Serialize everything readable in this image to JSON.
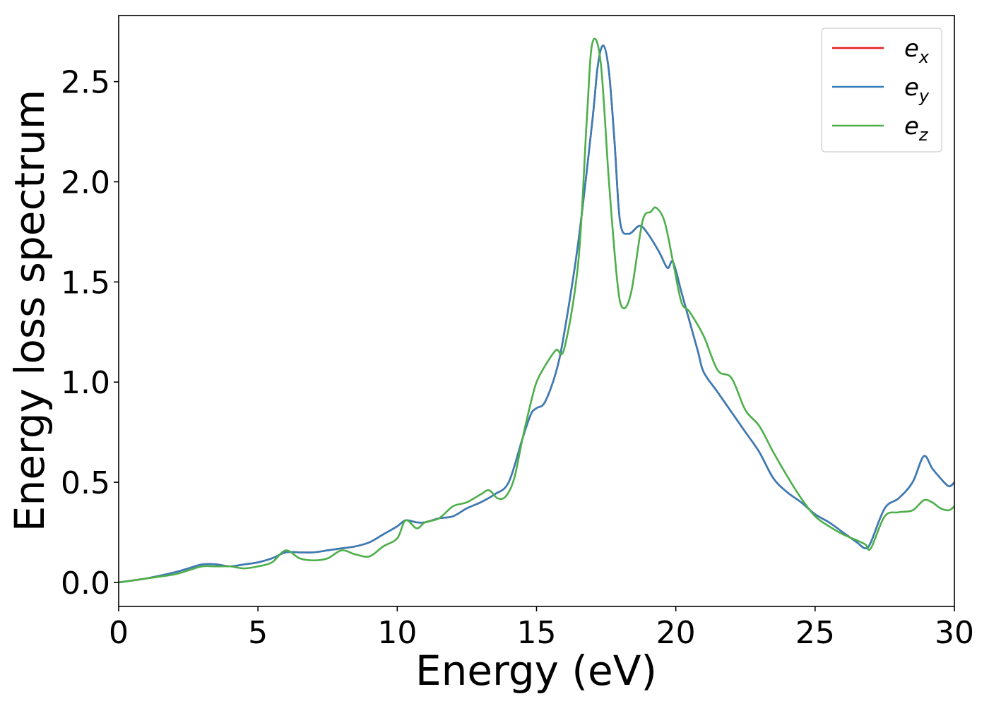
{
  "chart_data": {
    "type": "line",
    "title": "",
    "xlabel": "Energy (eV)",
    "ylabel": "Energy loss spectrum",
    "xlim": [
      0,
      30
    ],
    "ylim": [
      -0.12,
      2.83
    ],
    "xticks": [
      0,
      5,
      10,
      15,
      20,
      25,
      30
    ],
    "yticks": [
      0.0,
      0.5,
      1.0,
      1.5,
      2.0,
      2.5
    ],
    "xtick_labels": [
      "0",
      "5",
      "10",
      "15",
      "20",
      "25",
      "30"
    ],
    "ytick_labels": [
      "0.0",
      "0.5",
      "1.0",
      "1.5",
      "2.0",
      "2.5"
    ],
    "grid": false,
    "legend_position": "top-right",
    "series": [
      {
        "name": "e_x",
        "legend_base": "e",
        "legend_sub": "x",
        "color": "#e41a1c",
        "x": [
          0,
          1,
          2,
          2.5,
          3,
          3.5,
          4,
          4.5,
          5,
          5.5,
          6,
          6.5,
          7,
          7.5,
          8,
          8.5,
          9,
          9.5,
          10,
          10.3,
          10.7,
          11,
          11.5,
          12,
          12.5,
          13,
          13.5,
          14,
          14.5,
          14.8,
          15,
          15.3,
          15.7,
          16,
          16.5,
          17,
          17.2,
          17.4,
          17.6,
          17.8,
          18,
          18.3,
          18.7,
          19,
          19.4,
          19.7,
          19.9,
          20.2,
          20.5,
          20.8,
          21,
          21.5,
          22,
          22.5,
          23,
          23.5,
          24,
          24.5,
          25,
          25.5,
          26,
          26.5,
          26.8,
          27,
          27.5,
          28,
          28.5,
          28.9,
          29.2,
          29.5,
          29.8,
          30
        ],
        "y": [
          0.0,
          0.02,
          0.05,
          0.07,
          0.09,
          0.09,
          0.08,
          0.09,
          0.1,
          0.12,
          0.15,
          0.15,
          0.15,
          0.16,
          0.17,
          0.18,
          0.2,
          0.24,
          0.28,
          0.31,
          0.3,
          0.3,
          0.32,
          0.33,
          0.37,
          0.4,
          0.44,
          0.5,
          0.72,
          0.84,
          0.87,
          0.9,
          1.05,
          1.25,
          1.7,
          2.3,
          2.58,
          2.68,
          2.55,
          2.2,
          1.8,
          1.74,
          1.78,
          1.74,
          1.65,
          1.57,
          1.6,
          1.45,
          1.3,
          1.15,
          1.05,
          0.95,
          0.85,
          0.75,
          0.65,
          0.52,
          0.45,
          0.4,
          0.34,
          0.3,
          0.25,
          0.2,
          0.17,
          0.2,
          0.37,
          0.42,
          0.5,
          0.63,
          0.57,
          0.52,
          0.48,
          0.5
        ]
      },
      {
        "name": "e_y",
        "legend_base": "e",
        "legend_sub": "y",
        "color": "#377eb8",
        "x": [
          0,
          1,
          2,
          2.5,
          3,
          3.5,
          4,
          4.5,
          5,
          5.5,
          6,
          6.5,
          7,
          7.5,
          8,
          8.5,
          9,
          9.5,
          10,
          10.3,
          10.7,
          11,
          11.5,
          12,
          12.5,
          13,
          13.5,
          14,
          14.5,
          14.8,
          15,
          15.3,
          15.7,
          16,
          16.5,
          17,
          17.2,
          17.4,
          17.6,
          17.8,
          18,
          18.3,
          18.7,
          19,
          19.4,
          19.7,
          19.9,
          20.2,
          20.5,
          20.8,
          21,
          21.5,
          22,
          22.5,
          23,
          23.5,
          24,
          24.5,
          25,
          25.5,
          26,
          26.5,
          26.8,
          27,
          27.5,
          28,
          28.5,
          28.9,
          29.2,
          29.5,
          29.8,
          30
        ],
        "y": [
          0.0,
          0.02,
          0.05,
          0.07,
          0.09,
          0.09,
          0.08,
          0.09,
          0.1,
          0.12,
          0.15,
          0.15,
          0.15,
          0.16,
          0.17,
          0.18,
          0.2,
          0.24,
          0.28,
          0.31,
          0.3,
          0.3,
          0.32,
          0.33,
          0.37,
          0.4,
          0.44,
          0.5,
          0.72,
          0.84,
          0.87,
          0.9,
          1.05,
          1.25,
          1.7,
          2.3,
          2.58,
          2.68,
          2.55,
          2.2,
          1.8,
          1.74,
          1.78,
          1.74,
          1.65,
          1.57,
          1.6,
          1.45,
          1.3,
          1.15,
          1.05,
          0.95,
          0.85,
          0.75,
          0.65,
          0.52,
          0.45,
          0.4,
          0.34,
          0.3,
          0.25,
          0.2,
          0.17,
          0.2,
          0.37,
          0.42,
          0.5,
          0.63,
          0.57,
          0.52,
          0.48,
          0.5
        ]
      },
      {
        "name": "e_z",
        "legend_base": "e",
        "legend_sub": "z",
        "color": "#4daf4a",
        "x": [
          0,
          1,
          2,
          2.5,
          3,
          3.5,
          4,
          4.5,
          5,
          5.5,
          6,
          6.5,
          7,
          7.5,
          8,
          8.5,
          9,
          9.5,
          10,
          10.3,
          10.7,
          11,
          11.5,
          12,
          12.5,
          13,
          13.3,
          13.6,
          13.9,
          14.2,
          14.5,
          14.8,
          15,
          15.3,
          15.7,
          16,
          16.5,
          16.8,
          17,
          17.3,
          17.6,
          17.9,
          18.1,
          18.4,
          18.8,
          19.1,
          19.3,
          19.6,
          19.9,
          20.2,
          20.5,
          21,
          21.5,
          22,
          22.5,
          23,
          23.5,
          24,
          24.5,
          25,
          25.5,
          26,
          26.5,
          26.8,
          27,
          27.5,
          28,
          28.5,
          28.9,
          29.2,
          29.5,
          29.8,
          30
        ],
        "y": [
          0.0,
          0.02,
          0.04,
          0.06,
          0.08,
          0.08,
          0.08,
          0.07,
          0.08,
          0.1,
          0.16,
          0.12,
          0.11,
          0.12,
          0.16,
          0.14,
          0.13,
          0.18,
          0.22,
          0.31,
          0.27,
          0.3,
          0.32,
          0.38,
          0.4,
          0.44,
          0.46,
          0.42,
          0.43,
          0.52,
          0.72,
          0.9,
          1.0,
          1.08,
          1.16,
          1.17,
          1.6,
          2.3,
          2.69,
          2.6,
          2.0,
          1.5,
          1.37,
          1.45,
          1.8,
          1.85,
          1.87,
          1.8,
          1.6,
          1.4,
          1.35,
          1.23,
          1.06,
          1.02,
          0.86,
          0.78,
          0.65,
          0.53,
          0.42,
          0.33,
          0.28,
          0.24,
          0.21,
          0.19,
          0.17,
          0.33,
          0.35,
          0.36,
          0.41,
          0.4,
          0.37,
          0.36,
          0.38
        ]
      }
    ]
  }
}
